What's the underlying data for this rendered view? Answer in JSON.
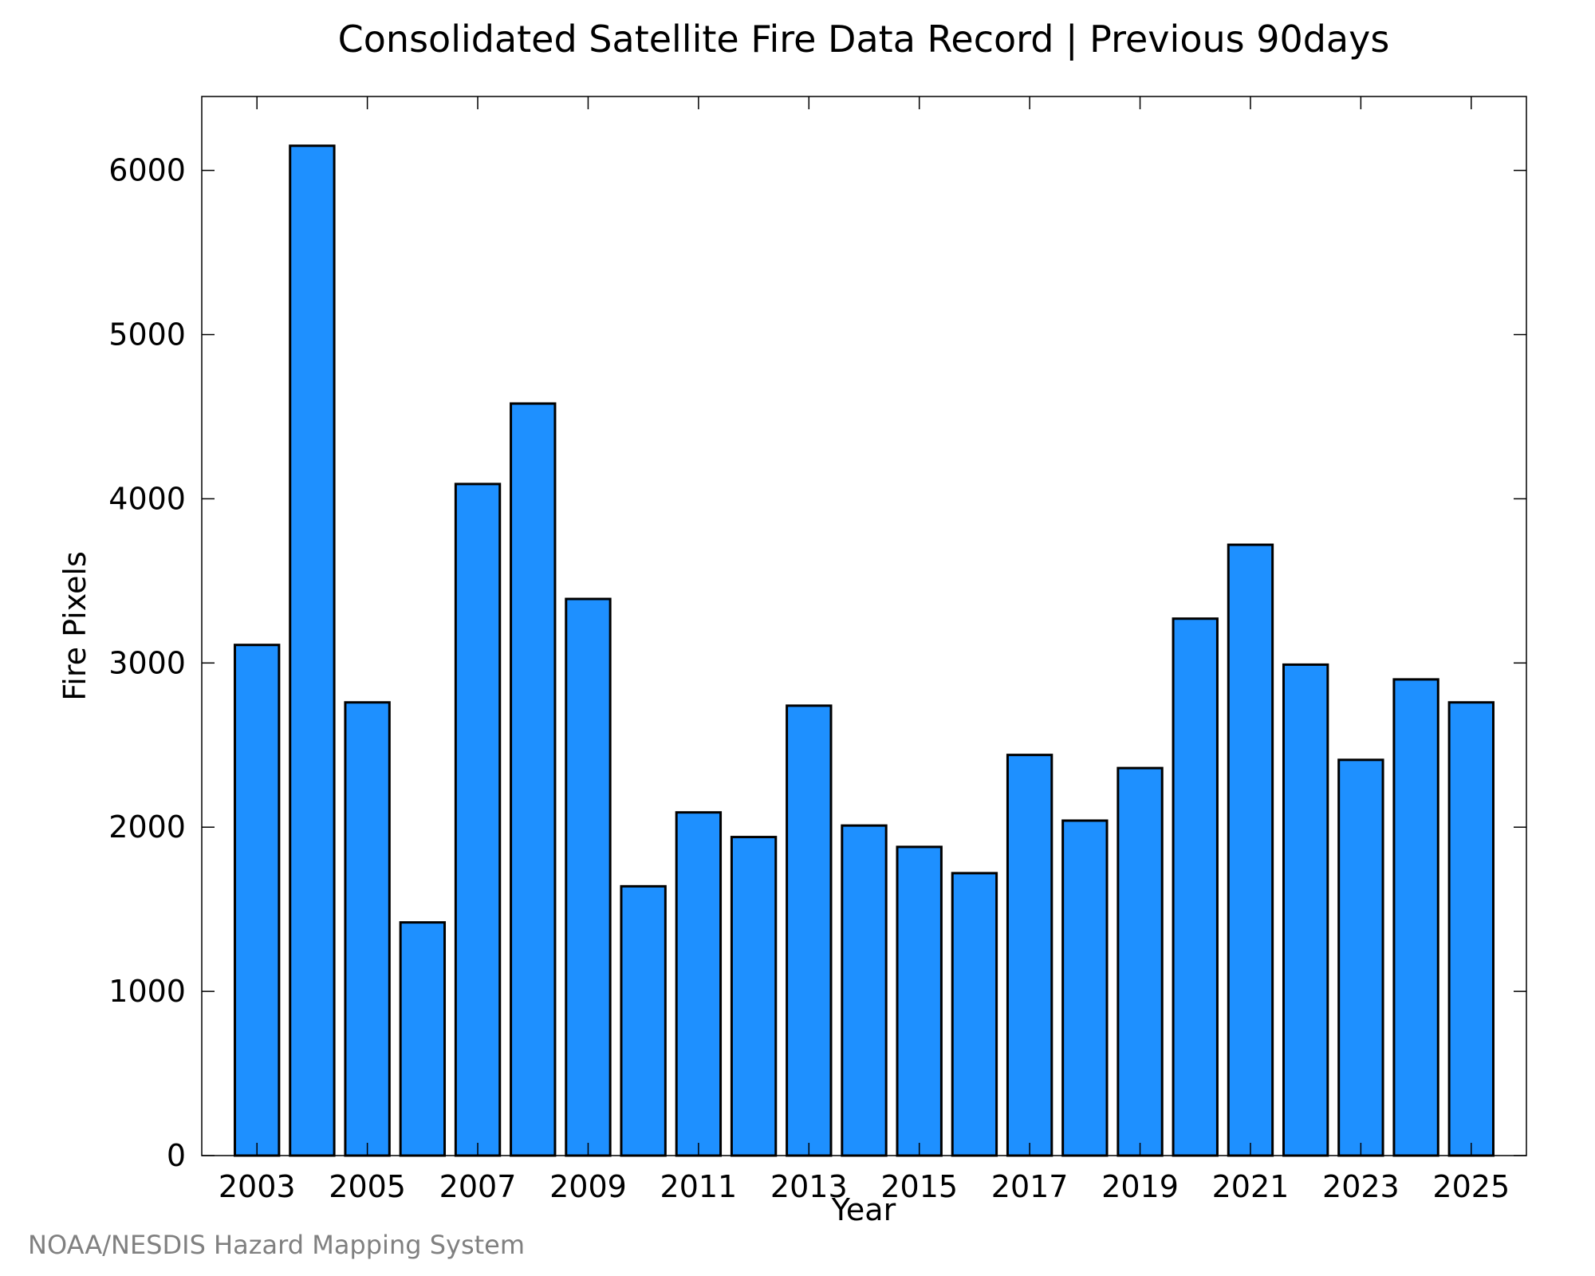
{
  "chart_data": {
    "type": "bar",
    "title": "Consolidated Satellite Fire Data Record | Previous 90days",
    "xlabel": "Year",
    "ylabel": "Fire Pixels",
    "categories": [
      2003,
      2004,
      2005,
      2006,
      2007,
      2008,
      2009,
      2010,
      2011,
      2012,
      2013,
      2014,
      2015,
      2016,
      2017,
      2018,
      2019,
      2020,
      2021,
      2022,
      2023,
      2024,
      2025
    ],
    "values": [
      3110,
      6150,
      2760,
      1420,
      4090,
      4580,
      3390,
      1640,
      2090,
      1940,
      2740,
      2010,
      1880,
      1720,
      2440,
      2040,
      2360,
      3270,
      3720,
      2990,
      2410,
      2900,
      2760
    ],
    "xlim": [
      2002,
      2026
    ],
    "ylim": [
      0,
      6450
    ],
    "x_ticks": [
      2003,
      2005,
      2007,
      2009,
      2011,
      2013,
      2015,
      2017,
      2019,
      2021,
      2023,
      2025
    ],
    "x_tick_labels": [
      "2003",
      "2005",
      "2007",
      "2009",
      "2011",
      "2013",
      "2015",
      "2017",
      "2019",
      "2021",
      "2023",
      "2025"
    ],
    "y_ticks": [
      0,
      1000,
      2000,
      3000,
      4000,
      5000,
      6000
    ],
    "y_tick_labels": [
      "0",
      "1000",
      "2000",
      "3000",
      "4000",
      "5000",
      "6000"
    ],
    "grid": false,
    "legend": "none",
    "bar_color": "#1e90ff",
    "edge_color": "#000000"
  },
  "footer": {
    "source": "NOAA/NESDIS Hazard Mapping System"
  }
}
